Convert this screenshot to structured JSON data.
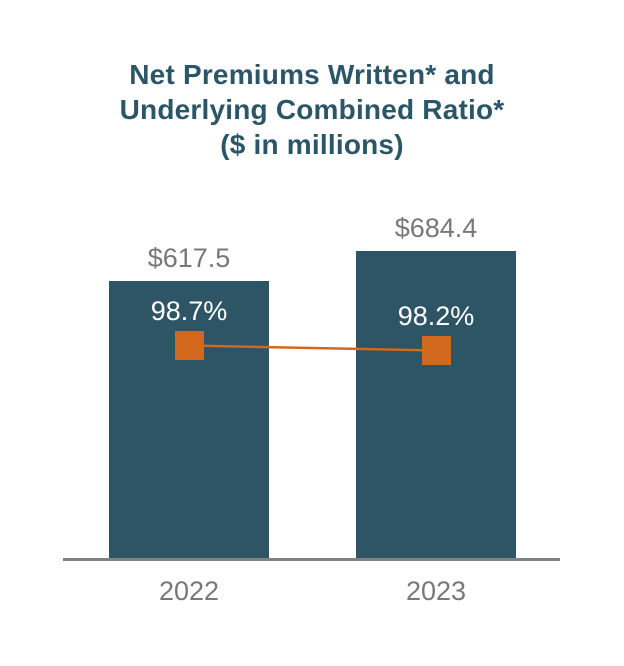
{
  "colors": {
    "background": "#FFFFFF",
    "title": "#2B5667",
    "bar": "#2E5565",
    "marker": "#D2691E",
    "connector_line": "#D2691E",
    "label_gray": "#77787B",
    "axis": "#7F8184",
    "ratio_text": "#FFFFFF"
  },
  "chart_data": {
    "type": "bar",
    "title": "Net Premiums Written* and Underlying Combined Ratio* ($ in millions)",
    "title_lines": [
      "Net Premiums Written* and",
      "Underlying Combined Ratio*",
      "($ in millions)"
    ],
    "categories": [
      "2022",
      "2023"
    ],
    "series": [
      {
        "name": "Net Premiums Written ($ in millions)",
        "type": "bar",
        "values": [
          617.5,
          684.4
        ],
        "labels": [
          "$617.5",
          "$684.4"
        ]
      },
      {
        "name": "Underlying Combined Ratio",
        "type": "line",
        "values": [
          98.7,
          98.2
        ],
        "labels": [
          "98.7%",
          "98.2%"
        ]
      }
    ],
    "bars": [
      {
        "category": "2022",
        "value": 617.5,
        "value_label": "$617.5",
        "ratio": 98.7,
        "ratio_label": "98.7%"
      },
      {
        "category": "2023",
        "value": 684.4,
        "value_label": "$684.4",
        "ratio": 98.2,
        "ratio_label": "98.2%"
      }
    ],
    "ylim": [
      0,
      700
    ],
    "grid": false,
    "legend": "none",
    "x_axis_line": true
  }
}
